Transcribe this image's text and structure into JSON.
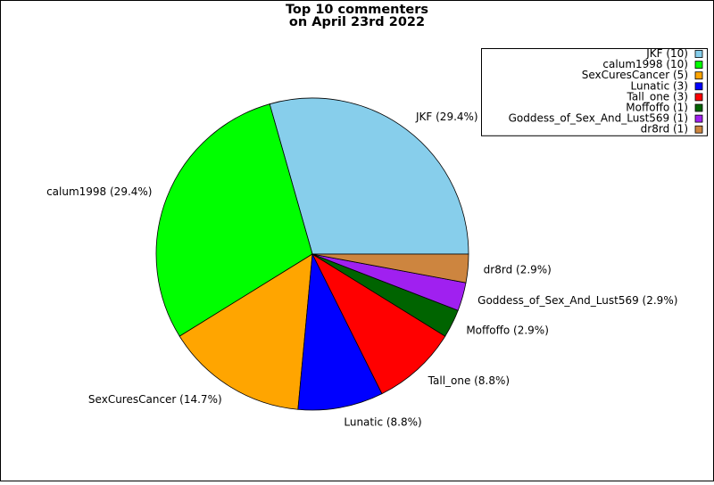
{
  "chart_data": {
    "type": "pie",
    "title": [
      "Top 10 commenters",
      "on April 23rd 2022"
    ],
    "values": [
      10,
      10,
      5,
      3,
      3,
      1,
      1,
      1
    ],
    "legend_labels": [
      "JKF (10)",
      "calum1998 (10)",
      "SexCuresCancer (5)",
      "Lunatic (3)",
      "Tall_one (3)",
      "Moffoffo (1)",
      "Goddess_of_Sex_And_Lust569 (1)",
      "dr8rd (1)"
    ],
    "slice_labels": [
      "JKF (29.4%)",
      "calum1998 (29.4%)",
      "SexCuresCancer (14.7%)",
      "Lunatic (8.8%)",
      "Tall_one (8.8%)",
      "Moffoffo (2.9%)",
      "Goddess_of_Sex_And_Lust569 (2.9%)",
      "dr8rd (2.9%)"
    ],
    "colors": [
      "#87ceeb",
      "#00ff00",
      "#ffa500",
      "#0000ff",
      "#ff0000",
      "#006400",
      "#a020f0",
      "#cd853f"
    ],
    "legend": "upper right"
  }
}
